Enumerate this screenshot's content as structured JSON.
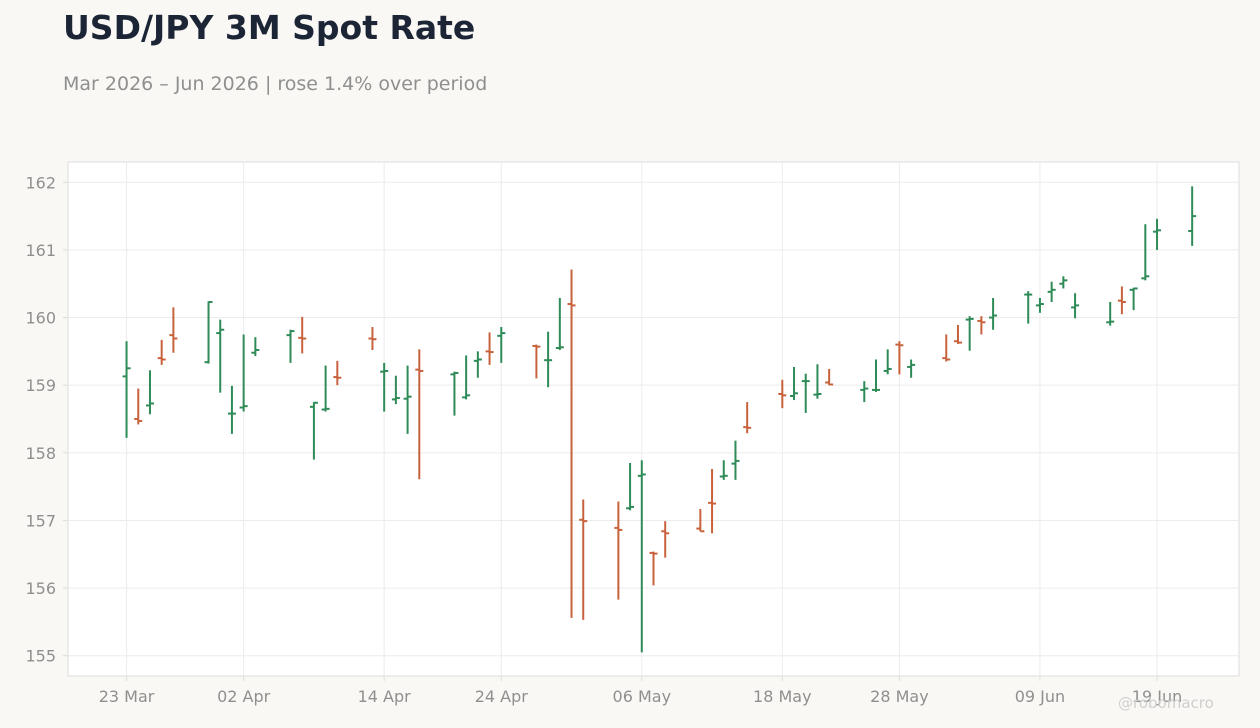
{
  "header": {
    "title": "USD/JPY 3M Spot Rate",
    "subtitle": "Mar 2026 – Jun 2026 | rose 1.4% over period"
  },
  "watermark": "@robomacro",
  "colors": {
    "up": "#2e8b57",
    "down": "#c8623d",
    "grid": "#ececec",
    "axis": "#dddddd",
    "background": "#f9f8f5",
    "plot_background": "#ffffff"
  },
  "chart_data": {
    "type": "ohlc",
    "title": "USD/JPY 3M Spot Rate",
    "subtitle": "Mar 2026 – Jun 2026 | rose 1.4% over period",
    "xlabel": "",
    "ylabel": "",
    "ylim": [
      154.7,
      162.3
    ],
    "xlim": [
      "2026-03-18",
      "2026-06-26"
    ],
    "grid": true,
    "legend": "none",
    "y_ticks": [
      155,
      156,
      157,
      158,
      159,
      160,
      161,
      162
    ],
    "x_ticks": [
      {
        "date": "2026-03-23",
        "label": "23 Mar"
      },
      {
        "date": "2026-04-02",
        "label": "02 Apr"
      },
      {
        "date": "2026-04-14",
        "label": "14 Apr"
      },
      {
        "date": "2026-04-24",
        "label": "24 Apr"
      },
      {
        "date": "2026-05-06",
        "label": "06 May"
      },
      {
        "date": "2026-05-18",
        "label": "18 May"
      },
      {
        "date": "2026-05-28",
        "label": "28 May"
      },
      {
        "date": "2026-06-09",
        "label": "09 Jun"
      },
      {
        "date": "2026-06-19",
        "label": "19 Jun"
      }
    ],
    "series": [
      {
        "dates": [
          "2026-03-23",
          "2026-03-24",
          "2026-03-25",
          "2026-03-26",
          "2026-03-27",
          "2026-03-30",
          "2026-03-31",
          "2026-04-01",
          "2026-04-02",
          "2026-04-03",
          "2026-04-06",
          "2026-04-07",
          "2026-04-08",
          "2026-04-09",
          "2026-04-10",
          "2026-04-13",
          "2026-04-14",
          "2026-04-15",
          "2026-04-16",
          "2026-04-17",
          "2026-04-20",
          "2026-04-21",
          "2026-04-22",
          "2026-04-23",
          "2026-04-24",
          "2026-04-27",
          "2026-04-28",
          "2026-04-29",
          "2026-04-30",
          "2026-05-01",
          "2026-05-04",
          "2026-05-05",
          "2026-05-06",
          "2026-05-07",
          "2026-05-08",
          "2026-05-11",
          "2026-05-12",
          "2026-05-13",
          "2026-05-14",
          "2026-05-15",
          "2026-05-18",
          "2026-05-19",
          "2026-05-20",
          "2026-05-21",
          "2026-05-22",
          "2026-05-25",
          "2026-05-26",
          "2026-05-27",
          "2026-05-28",
          "2026-05-29",
          "2026-06-01",
          "2026-06-02",
          "2026-06-03",
          "2026-06-04",
          "2026-06-05",
          "2026-06-08",
          "2026-06-09",
          "2026-06-10",
          "2026-06-11",
          "2026-06-12",
          "2026-06-15",
          "2026-06-16",
          "2026-06-17",
          "2026-06-18",
          "2026-06-19"
        ],
        "open": [
          159.13,
          158.5,
          158.7,
          159.4,
          159.74,
          159.34,
          159.77,
          158.58,
          158.67,
          159.48,
          159.74,
          159.7,
          158.68,
          158.64,
          159.12,
          159.69,
          159.2,
          158.79,
          158.8,
          159.23,
          159.16,
          158.82,
          159.36,
          159.5,
          159.73,
          159.58,
          159.37,
          159.55,
          160.2,
          157.01,
          156.89,
          157.18,
          157.66,
          156.52,
          156.84,
          156.88,
          157.26,
          157.65,
          157.84,
          158.38,
          158.87,
          158.84,
          159.06,
          158.86,
          159.04,
          158.93,
          158.93,
          159.21,
          159.6,
          159.27,
          159.4,
          159.65,
          159.97,
          159.95,
          160.0,
          160.34,
          160.18,
          160.38,
          160.5,
          160.15,
          159.93,
          160.25,
          160.41,
          160.58,
          161.27
        ],
        "high": [
          159.65,
          158.95,
          159.22,
          159.67,
          160.15,
          160.24,
          159.97,
          158.99,
          159.75,
          159.71,
          159.82,
          160.01,
          158.75,
          159.29,
          159.36,
          159.86,
          159.33,
          159.14,
          159.29,
          159.53,
          159.2,
          159.44,
          159.5,
          159.78,
          159.86,
          159.6,
          159.79,
          160.29,
          160.71,
          157.31,
          157.28,
          157.85,
          157.89,
          156.54,
          156.99,
          157.17,
          157.76,
          157.89,
          158.18,
          158.75,
          159.08,
          159.27,
          159.17,
          159.31,
          159.24,
          159.06,
          159.38,
          159.53,
          159.65,
          159.38,
          159.75,
          159.89,
          160.02,
          160.02,
          160.29,
          160.39,
          160.29,
          160.53,
          160.61,
          160.36,
          160.23,
          160.46,
          160.44,
          161.38,
          161.46
        ],
        "low": [
          158.22,
          158.42,
          158.57,
          159.3,
          159.48,
          159.32,
          158.89,
          158.28,
          158.61,
          159.43,
          159.33,
          159.47,
          157.9,
          158.61,
          159.0,
          159.52,
          158.61,
          158.72,
          158.28,
          157.61,
          158.55,
          158.79,
          159.11,
          159.3,
          159.33,
          159.1,
          158.97,
          159.52,
          155.56,
          155.53,
          155.83,
          157.15,
          155.05,
          156.04,
          156.45,
          156.84,
          156.81,
          157.6,
          157.6,
          158.29,
          158.66,
          158.78,
          158.59,
          158.8,
          159.0,
          158.75,
          158.9,
          159.16,
          159.16,
          159.11,
          159.35,
          159.61,
          159.51,
          159.75,
          159.82,
          159.91,
          160.07,
          160.23,
          160.43,
          159.99,
          159.88,
          160.05,
          160.11,
          160.55,
          161.0
        ],
        "close": [
          159.25,
          158.47,
          158.73,
          159.38,
          159.69,
          160.23,
          159.82,
          158.58,
          158.69,
          159.52,
          159.8,
          159.69,
          158.74,
          158.65,
          159.11,
          159.68,
          159.21,
          158.81,
          158.83,
          159.21,
          159.18,
          158.85,
          159.38,
          159.49,
          159.77,
          159.57,
          159.37,
          159.56,
          160.18,
          156.99,
          156.86,
          157.2,
          157.68,
          156.51,
          156.81,
          156.84,
          157.25,
          157.66,
          157.88,
          158.37,
          158.85,
          158.88,
          159.06,
          158.87,
          159.01,
          158.95,
          158.93,
          159.24,
          159.59,
          159.3,
          159.38,
          159.63,
          159.98,
          159.93,
          160.03,
          160.34,
          160.2,
          160.41,
          160.55,
          160.18,
          159.94,
          160.23,
          160.43,
          160.61,
          161.29
        ]
      },
      {
        "dates": [
          "2026-06-22"
        ],
        "open": [
          161.28
        ],
        "high": [
          161.94
        ],
        "low": [
          161.06
        ],
        "close": [
          161.5
        ]
      }
    ]
  }
}
